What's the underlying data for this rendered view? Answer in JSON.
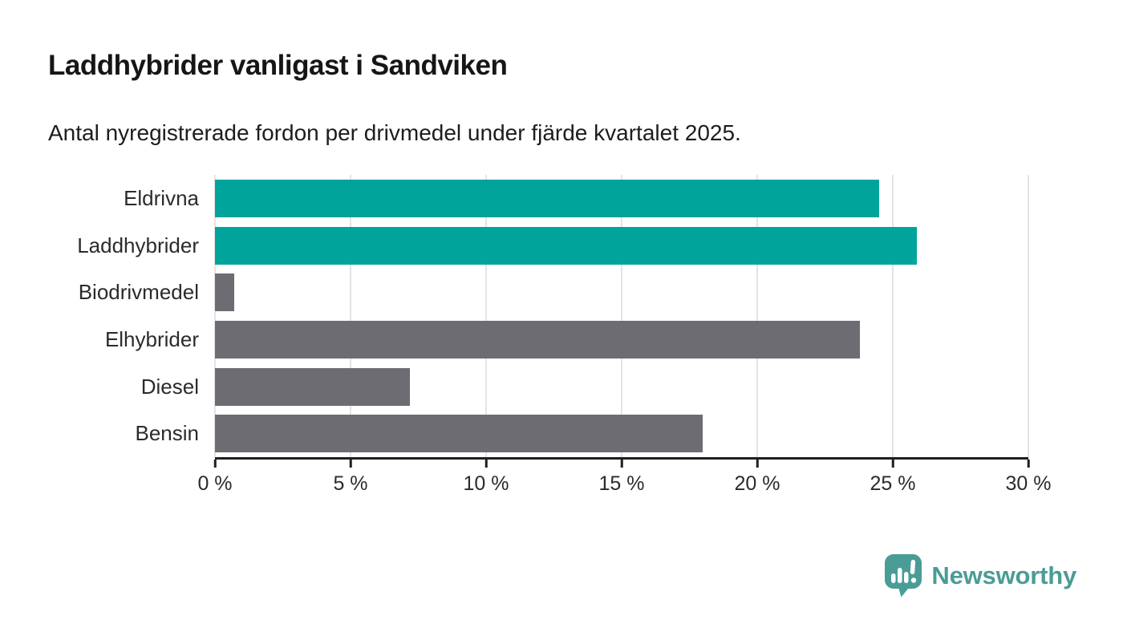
{
  "header": {
    "title": "Laddhybrider vanligast i Sandviken",
    "subtitle": "Antal nyregistrerade fordon per drivmedel under fjärde kvartalet 2025."
  },
  "chart_data": {
    "type": "bar",
    "orientation": "horizontal",
    "title": "Laddhybrider vanligast i Sandviken",
    "subtitle": "Antal nyregistrerade fordon per drivmedel under fjärde kvartalet 2025.",
    "categories": [
      "Eldrivna",
      "Laddhybrider",
      "Biodrivmedel",
      "Elhybrider",
      "Diesel",
      "Bensin"
    ],
    "values": [
      24.5,
      25.9,
      0.7,
      23.8,
      7.2,
      18.0
    ],
    "unit": "%",
    "bar_colors": [
      "#00a49b",
      "#00a49b",
      "#6c6c72",
      "#6c6c72",
      "#6c6c72",
      "#6c6c72"
    ],
    "xlabel": "",
    "ylabel": "",
    "xlim": [
      0,
      30
    ],
    "xticks": [
      0,
      5,
      10,
      15,
      20,
      25,
      30
    ],
    "xtick_labels": [
      "0 %",
      "5 %",
      "10 %",
      "15 %",
      "20 %",
      "25 %",
      "30 %"
    ],
    "grid": "vertical",
    "legend": "none"
  },
  "branding": {
    "logo_text": "Newsworthy",
    "logo_icon": "speech-bubble-bar-chart-icon",
    "logo_color": "#4a9c96"
  },
  "colors": {
    "accent_teal": "#00a49b",
    "bar_gray": "#6c6c72",
    "axis_line": "#1f1f1f",
    "gridline": "#e4e4e4",
    "background": "#ffffff",
    "text_dark": "#161616"
  }
}
